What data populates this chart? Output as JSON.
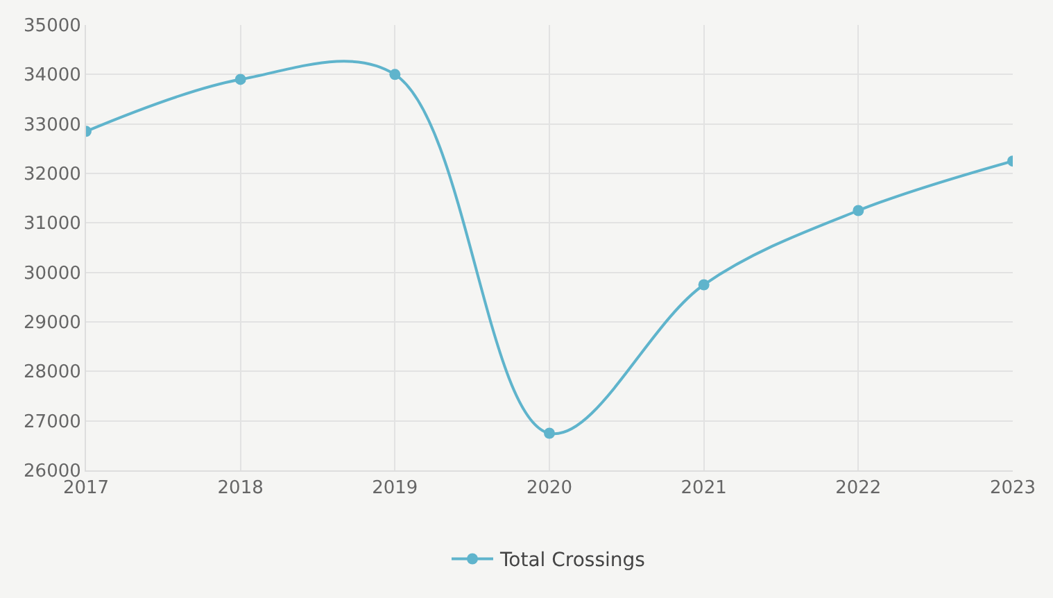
{
  "chart_data": {
    "type": "line",
    "categories": [
      "2017",
      "2018",
      "2019",
      "2020",
      "2021",
      "2022",
      "2023"
    ],
    "series": [
      {
        "name": "Total Crossings",
        "color": "#5fb4cc",
        "values": [
          32850,
          33900,
          34000,
          26750,
          29750,
          31250,
          32250
        ]
      }
    ],
    "ylim": [
      26000,
      35000
    ],
    "yticks": [
      26000,
      27000,
      28000,
      29000,
      30000,
      31000,
      32000,
      33000,
      34000,
      35000
    ],
    "grid": true,
    "legend": "bottom",
    "marker": "circle",
    "line_style": "solid"
  }
}
